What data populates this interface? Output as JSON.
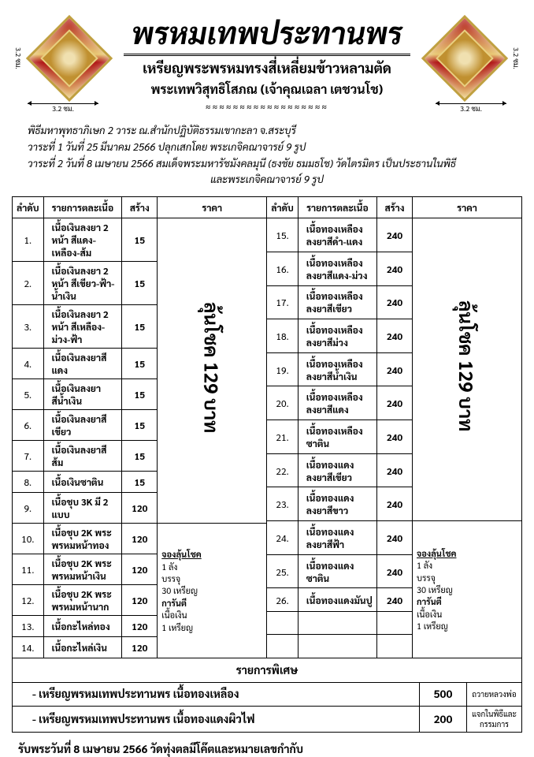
{
  "header": {
    "title": "พรหมเทพประทานพร",
    "subtitle": "เหรียญพระพรหมทรงสี่เหลี่ยมข้าวหลามตัด",
    "tertiary": "พระเทพวิสุทธิโสภณ (เจ้าคุณเฉลา เตชวนโช)",
    "ornament": "≈≈≈≈≈≈≈≈≈≈≈≈≈≈≈≈≈≈",
    "dim_h": "3.2 ซม.",
    "dim_v": "3.2 ซม."
  },
  "description": {
    "line1": "พิธีมหาพุทธาภิเษก 2 วาระ ณ.สำนักปฏิบัติธรรมเขากะลา จ.สระบุรี",
    "line2": "วาระที่ 1 วันที่ 25 มีนาคม 2566 ปลุกเสกโดย พระเกจิคณาจารย์ 9 รูป",
    "line3": "วาระที่ 2 วันที่ 8 เมษายน 2566 สมเด็จพระมหารัชมังคลมุนี (ธงชัย ธมมธโช) วัดไตรมิตร เป็นประธานในพิธี",
    "line4": "และพระเกจิคณาจารย์ 9 รูป"
  },
  "table": {
    "headers": {
      "num": "ลำดับ",
      "item": "รายการตละเนื้อ",
      "qty": "สร้าง",
      "price": "ราคา"
    },
    "left_rows": [
      {
        "n": "1.",
        "item": "เนื้อเงินลงยา 2 หน้า สีแดง-เหลือง-ส้ม",
        "qty": "15"
      },
      {
        "n": "2.",
        "item": "เนื้อเงินลงยา 2 หน้า สีเขียว-ฟ้า-น้ำเงิน",
        "qty": "15"
      },
      {
        "n": "3.",
        "item": "เนื้อเงินลงยา 2 หน้า สีเหลือง-ม่วง-ฟ้า",
        "qty": "15"
      },
      {
        "n": "4.",
        "item": "เนื้อเงินลงยาสีแดง",
        "qty": "15"
      },
      {
        "n": "5.",
        "item": "เนื้อเงินลงยาสีน้ำเงิน",
        "qty": "15"
      },
      {
        "n": "6.",
        "item": "เนื้อเงินลงยาสีเขียว",
        "qty": "15"
      },
      {
        "n": "7.",
        "item": "เนื้อเงินลงยาสีส้ม",
        "qty": "15"
      },
      {
        "n": "8.",
        "item": "เนื้อเงินซาติน",
        "qty": "15"
      },
      {
        "n": "9.",
        "item": "เนื้อชุบ 3K มี 2 แบบ",
        "qty": "120"
      },
      {
        "n": "10.",
        "item": "เนื้อชุบ 2K พระพรหมหน้าทอง",
        "qty": "120"
      },
      {
        "n": "11.",
        "item": "เนื้อชุบ 2K พระพรหมหน้าเงิน",
        "qty": "120"
      },
      {
        "n": "12.",
        "item": "เนื้อชุบ 2K พระพรหมหน้านาก",
        "qty": "120"
      },
      {
        "n": "13.",
        "item": "เนื้อกะไหล่ทอง",
        "qty": "120"
      },
      {
        "n": "14.",
        "item": "เนื้อกะไหล่เงิน",
        "qty": "120"
      }
    ],
    "right_rows": [
      {
        "n": "15.",
        "item": "เนื้อทองเหลืองลงยาสีดำ-แดง",
        "qty": "240"
      },
      {
        "n": "16.",
        "item": "เนื้อทองเหลืองลงยาสีแดง-ม่วง",
        "qty": "240"
      },
      {
        "n": "17.",
        "item": "เนื้อทองเหลืองลงยาสีเขียว",
        "qty": "240"
      },
      {
        "n": "18.",
        "item": "เนื้อทองเหลืองลงยาสีม่วง",
        "qty": "240"
      },
      {
        "n": "19.",
        "item": "เนื้อทองเหลืองลงยาสีน้ำเงิน",
        "qty": "240"
      },
      {
        "n": "20.",
        "item": "เนื้อทองเหลืองลงยาสีแดง",
        "qty": "240"
      },
      {
        "n": "21.",
        "item": "เนื้อทองเหลืองซาติน",
        "qty": "240"
      },
      {
        "n": "22.",
        "item": "เนื้อทองแดงลงยาสีเขียว",
        "qty": "240"
      },
      {
        "n": "23.",
        "item": "เนื้อทองแดงลงยาสีขาว",
        "qty": "240"
      },
      {
        "n": "24.",
        "item": "เนื้อทองแดงลงยาสีฟ้า",
        "qty": "240"
      },
      {
        "n": "25.",
        "item": "เนื้อทองแดงซาติน",
        "qty": "240"
      },
      {
        "n": "26.",
        "item": "เนื้อทองแดงมันปู",
        "qty": "240"
      }
    ],
    "price_banner": {
      "big": "ลุ้นโชค 129 บาท",
      "sub_title": "จองลุ้นโชค",
      "line1": "1 ลัง",
      "line2": "บรรจุ",
      "line3": "30 เหรียญ",
      "line4": "การันตี",
      "line5": "เนื้อเงิน",
      "line6": "1 เหรียญ"
    }
  },
  "special": {
    "header": "รายการพิเศษ",
    "rows": [
      {
        "item": "- เหรียญพรหมเทพประทานพร เนื้อทองเหลือง",
        "price": "500",
        "note": "ถวายหลวงพ่อ"
      },
      {
        "item": "- เหรียญพรหมเทพประทานพร เนื้อทองแดงผิวไฟ",
        "price": "200",
        "note": "แจกในพิธีและกรรมการ"
      }
    ]
  },
  "footer": "รับพระวันที่ 8 เมษายน 2566 วัดทุ่งตลมีโค๊ตและหมายเลขกำกับ"
}
